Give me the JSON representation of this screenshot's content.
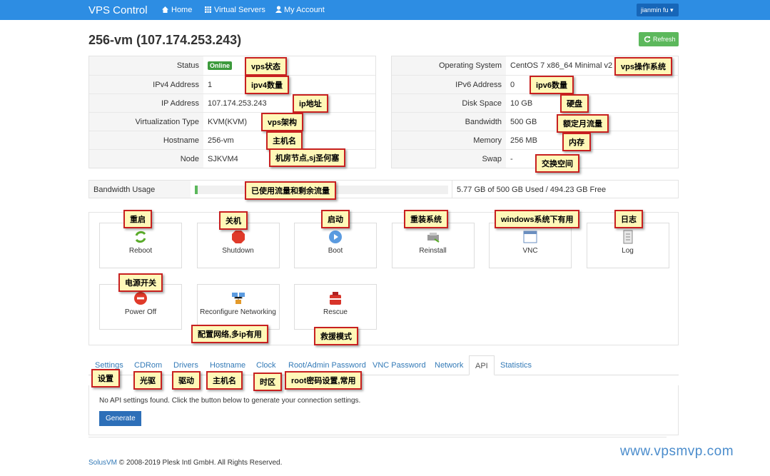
{
  "nav": {
    "brand": "VPS Control",
    "links": [
      "Home",
      "Virtual Servers",
      "My Account"
    ],
    "user": "jianmin fu"
  },
  "header": {
    "title": "256-vm (107.174.253.243)",
    "refresh": "Refresh"
  },
  "info_left": [
    [
      "Status",
      "Online"
    ],
    [
      "IPv4 Address",
      "1"
    ],
    [
      "IP Address",
      "107.174.253.243"
    ],
    [
      "Virtualization Type",
      "KVM(KVM)"
    ],
    [
      "Hostname",
      "256-vm"
    ],
    [
      "Node",
      "SJKVM4"
    ]
  ],
  "info_right": [
    [
      "Operating System",
      "CentOS 7 x86_64 Minimal v2"
    ],
    [
      "IPv6 Address",
      "0"
    ],
    [
      "Disk Space",
      "10 GB"
    ],
    [
      "Bandwidth",
      "500 GB"
    ],
    [
      "Memory",
      "256 MB"
    ],
    [
      "Swap",
      "-"
    ]
  ],
  "bandwidth": {
    "label": "Bandwidth Usage",
    "text": "5.77 GB of 500 GB Used / 494.23 GB Free"
  },
  "actions": [
    "Reboot",
    "Shutdown",
    "Boot",
    "Reinstall",
    "VNC",
    "Log",
    "Power Off",
    "Reconfigure Networking",
    "Rescue"
  ],
  "tabs": [
    "Settings",
    "CDRom",
    "Drivers",
    "Hostname",
    "Clock",
    "Root/Admin Password",
    "VNC Password",
    "Network",
    "API",
    "Statistics"
  ],
  "api": {
    "message": "No API settings found. Click the button below to generate your connection settings.",
    "button": "Generate"
  },
  "footer": {
    "link": "SolusVM",
    "text": " © 2008-2019 Plesk Intl GmbH. All Rights Reserved."
  },
  "watermark": "www.vpsmvp.com",
  "annotations": [
    "vps状态",
    "ipv4数量",
    "ip地址",
    "vps架构",
    "主机名",
    "机房节点,sj圣何塞",
    "vps操作系统",
    "ipv6数量",
    "硬盘",
    "额定月流量",
    "内存",
    "交换空间",
    "已使用流量和剩余流量",
    "重启",
    "关机",
    "启动",
    "重装系统",
    "windows系统下有用",
    "日志",
    "电源开关",
    "配置网络,多ip有用",
    "救援模式",
    "设置",
    "光驱",
    "驱动",
    "主机名",
    "时区",
    "root密码设置,常用"
  ]
}
